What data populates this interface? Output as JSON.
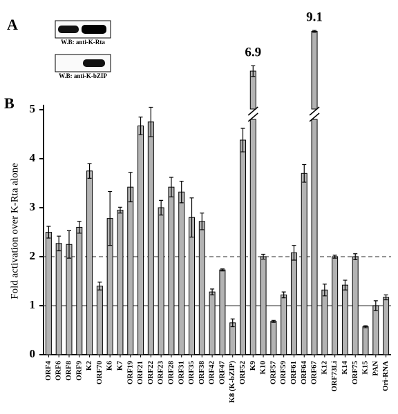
{
  "panel_a": {
    "label": "A",
    "blots": [
      "W.B: anti-K-Rta",
      "W.B: anti-K-bZIP"
    ]
  },
  "chart_data": {
    "type": "bar",
    "panel_label": "B",
    "ylabel": "Fold activation over K-Rta alone",
    "categories": [
      "ORF4",
      "ORF6",
      "ORF8",
      "ORF9",
      "K2",
      "ORF70",
      "K6",
      "K7",
      "ORF19",
      "ORF21",
      "ORF22",
      "ORF23",
      "ORF28",
      "ORF31",
      "ORF35",
      "ORF38",
      "ORF42",
      "ORF47",
      "K8 (K-bZIP)",
      "ORF52",
      "K9",
      "K10",
      "ORF57",
      "ORF59",
      "ORF61",
      "ORF64",
      "ORF67",
      "K12",
      "ORF73Li",
      "K14",
      "ORF75",
      "K15",
      "PAN",
      "Ori-RNA"
    ],
    "values": [
      2.5,
      2.27,
      2.25,
      2.6,
      3.75,
      1.4,
      2.78,
      2.95,
      3.42,
      4.67,
      4.75,
      3.0,
      3.42,
      3.32,
      2.8,
      2.72,
      1.28,
      1.73,
      0.65,
      4.38,
      6.9,
      2.0,
      0.68,
      1.22,
      2.08,
      3.7,
      9.1,
      1.32,
      2.0,
      1.42,
      2.0,
      0.57,
      1.0,
      1.17
    ],
    "errors": [
      0.12,
      0.15,
      0.28,
      0.12,
      0.15,
      0.08,
      0.55,
      0.06,
      0.3,
      0.18,
      0.3,
      0.15,
      0.2,
      0.22,
      0.4,
      0.17,
      0.06,
      0.02,
      0.08,
      0.24,
      0.3,
      0.05,
      0.02,
      0.06,
      0.15,
      0.18,
      0.05,
      0.12,
      0.03,
      0.1,
      0.06,
      0.02,
      0.1,
      0.05
    ],
    "value_labels": [
      null,
      null,
      null,
      null,
      null,
      null,
      null,
      null,
      null,
      null,
      null,
      null,
      null,
      null,
      null,
      null,
      null,
      null,
      null,
      null,
      "6.9",
      null,
      null,
      null,
      null,
      null,
      "9.1",
      null,
      null,
      null,
      null,
      null,
      null,
      null
    ],
    "color": "#b3b3b3",
    "ylim": [
      0,
      5.1
    ],
    "yticks": [
      0,
      1,
      2,
      3,
      4,
      5
    ],
    "reference_lines": [
      {
        "value": 1,
        "style": "solid"
      },
      {
        "value": 2,
        "style": "dashed"
      }
    ],
    "axis_break": true
  }
}
